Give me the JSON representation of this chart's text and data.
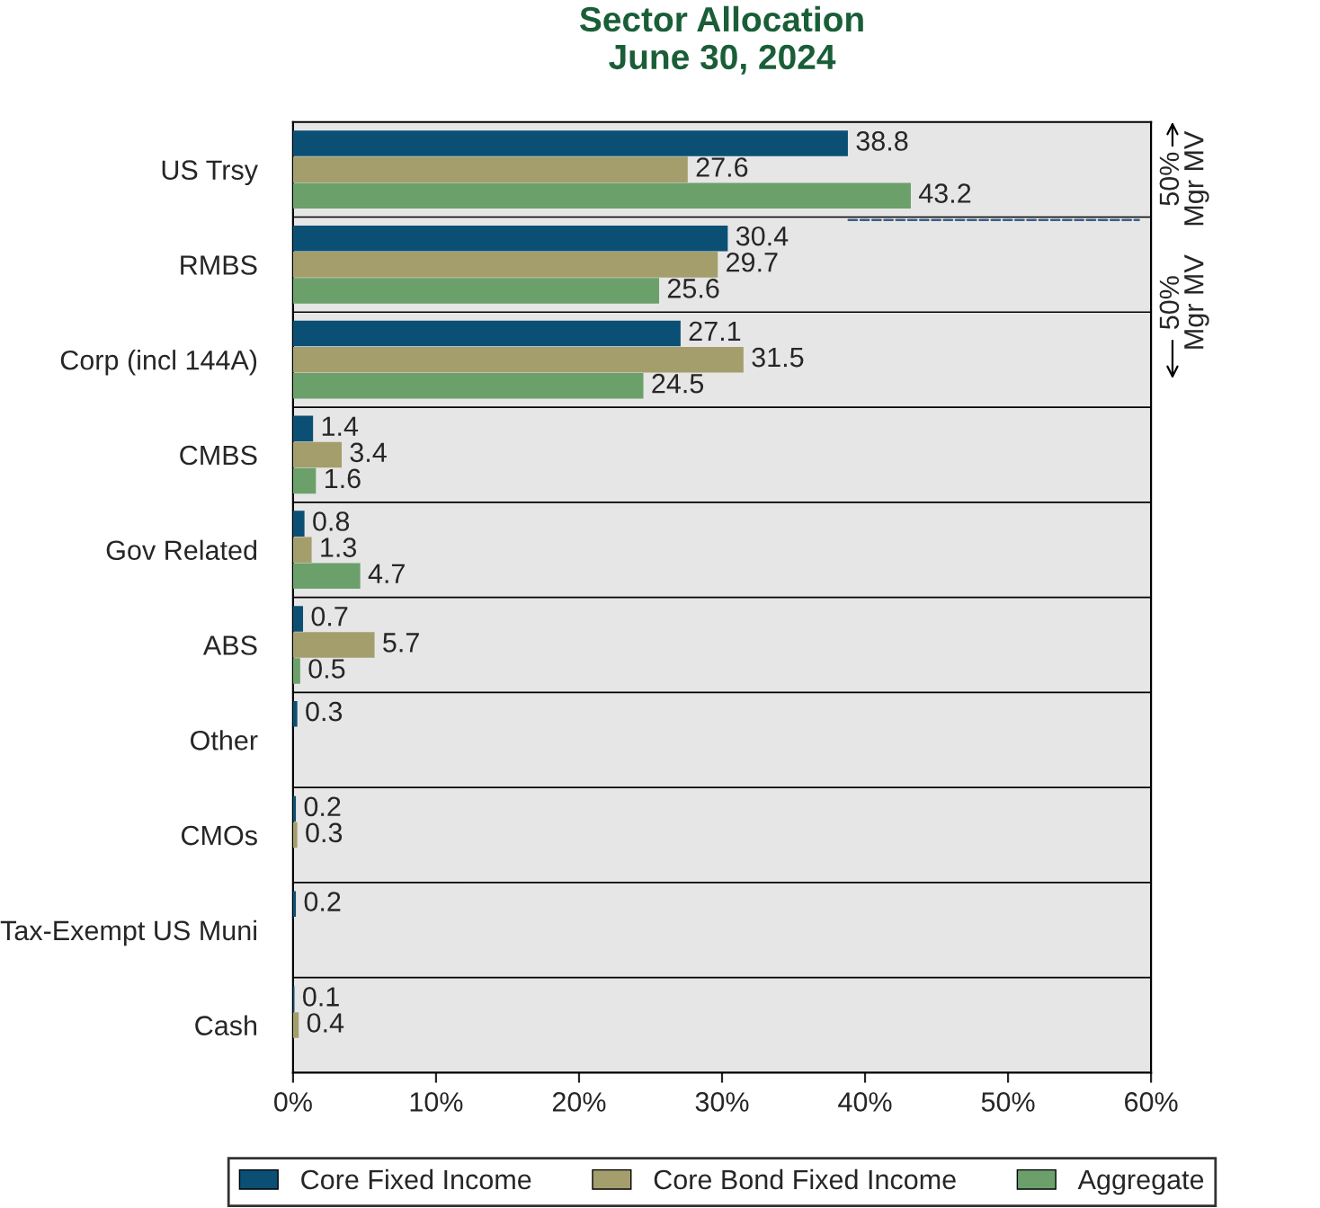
{
  "chart_data": {
    "type": "bar",
    "orientation": "horizontal",
    "title": "Sector Allocation\nJune 30, 2024",
    "categories": [
      "US Trsy",
      "RMBS",
      "Corp (incl 144A)",
      "CMBS",
      "Gov Related",
      "ABS",
      "Other",
      "CMOs",
      "Tax-Exempt US Muni",
      "Cash"
    ],
    "series": [
      {
        "name": "Core Fixed Income",
        "color": "#0b4f75",
        "values": [
          38.8,
          30.4,
          27.1,
          1.4,
          0.8,
          0.7,
          0.3,
          0.2,
          0.2,
          0.1
        ]
      },
      {
        "name": "Core Bond Fixed Income",
        "color": "#a39e6c",
        "values": [
          27.6,
          29.7,
          31.5,
          3.4,
          1.3,
          5.7,
          null,
          0.3,
          null,
          0.4
        ]
      },
      {
        "name": "Aggregate",
        "color": "#6ba06b",
        "values": [
          43.2,
          25.6,
          24.5,
          1.6,
          4.7,
          0.5,
          null,
          null,
          null,
          null
        ]
      }
    ],
    "xlim": [
      0,
      60
    ],
    "xticks": [
      {
        "value": 0,
        "label": "0%"
      },
      {
        "value": 10,
        "label": "10%"
      },
      {
        "value": 20,
        "label": "20%"
      },
      {
        "value": 30,
        "label": "30%"
      },
      {
        "value": 40,
        "label": "40%"
      },
      {
        "value": 50,
        "label": "50%"
      },
      {
        "value": 60,
        "label": "60%"
      }
    ],
    "data_labels": true,
    "grid": "y",
    "legend": "bottom",
    "annotations": [
      "50%\nMgr MV",
      "50%\nMgr MV"
    ]
  }
}
